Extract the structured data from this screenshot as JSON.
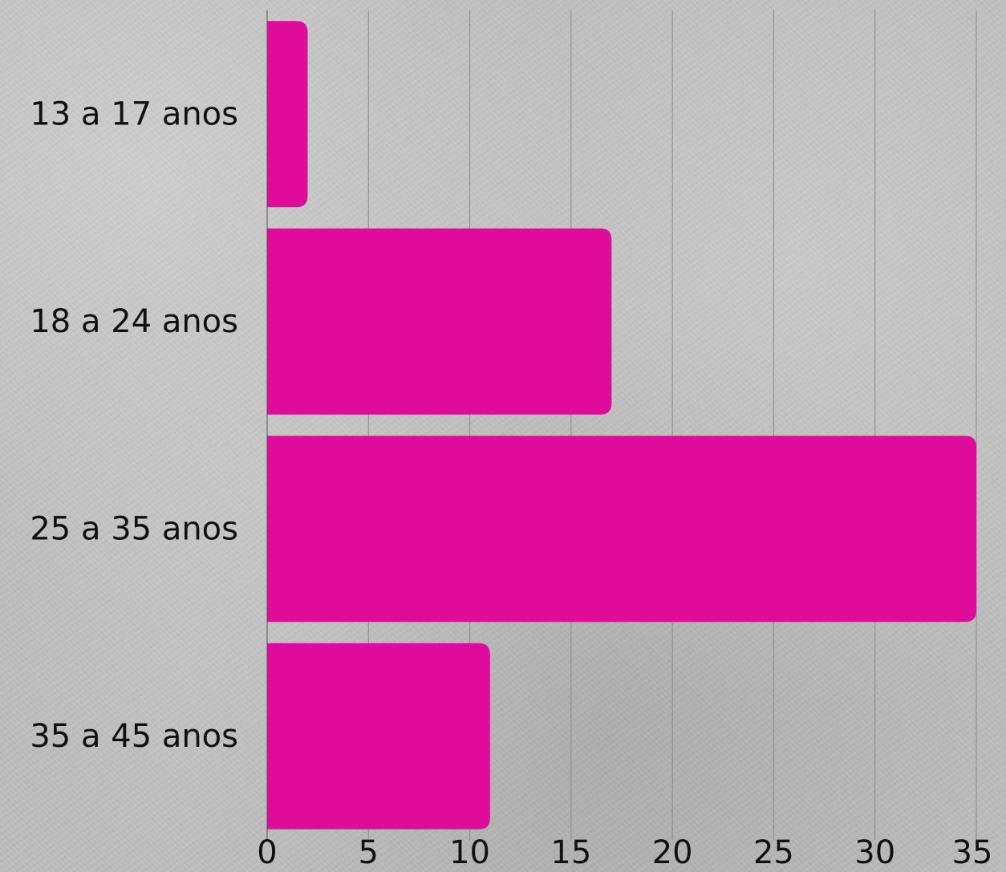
{
  "chart_data": {
    "type": "bar",
    "orientation": "horizontal",
    "categories": [
      "13 a 17 anos",
      "18 a 24 anos",
      "25 a 35 anos",
      "35 a 45 anos"
    ],
    "values": [
      2,
      17,
      35,
      11
    ],
    "xlim": [
      0,
      35
    ],
    "xticks": [
      0,
      5,
      10,
      15,
      20,
      25,
      30,
      35
    ],
    "xtick_labels": [
      "0",
      "5",
      "10",
      "15",
      "20",
      "25",
      "30",
      "35"
    ],
    "grid": true,
    "bar_color": "#de0b9b",
    "title": "",
    "xlabel": "",
    "ylabel": ""
  }
}
